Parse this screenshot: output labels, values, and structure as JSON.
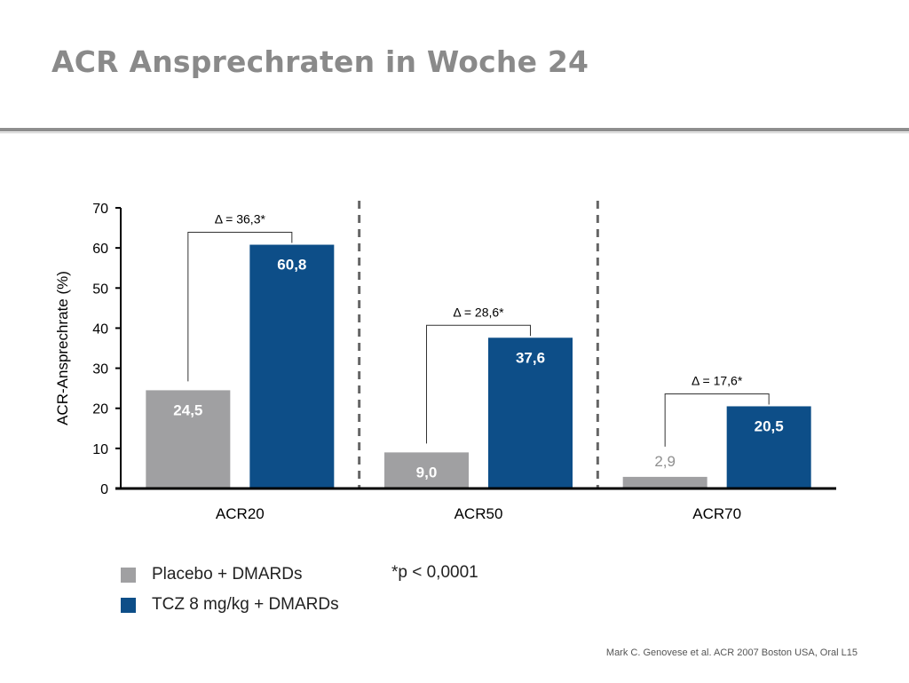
{
  "title": "ACR Ansprechraten in Woche 24",
  "chart_data": {
    "type": "bar",
    "categories": [
      "ACR20",
      "ACR50",
      "ACR70"
    ],
    "series": [
      {
        "name": "Placebo + DMARDs",
        "values": [
          24.5,
          9.0,
          2.9
        ],
        "labels": [
          "24,5",
          "9,0",
          "2,9"
        ],
        "color": "#a0a0a2"
      },
      {
        "name": "TCZ 8 mg/kg + DMARDs",
        "values": [
          60.8,
          37.6,
          20.5
        ],
        "labels": [
          "60,8",
          "37,6",
          "20,5"
        ],
        "color": "#0d4e88"
      }
    ],
    "deltas": [
      "Δ = 36,3*",
      "Δ = 28,6*",
      "Δ = 17,6*"
    ],
    "ylabel": "ACR-Ansprechrate (%)",
    "ylim": [
      0,
      70
    ],
    "yticks": [
      0,
      10,
      20,
      30,
      40,
      50,
      60,
      70
    ],
    "grid": false,
    "legend_position": "bottom-left"
  },
  "footnote": "*p < 0,0001",
  "source": "Mark C. Genovese et al. ACR 2007 Boston USA, Oral L15"
}
